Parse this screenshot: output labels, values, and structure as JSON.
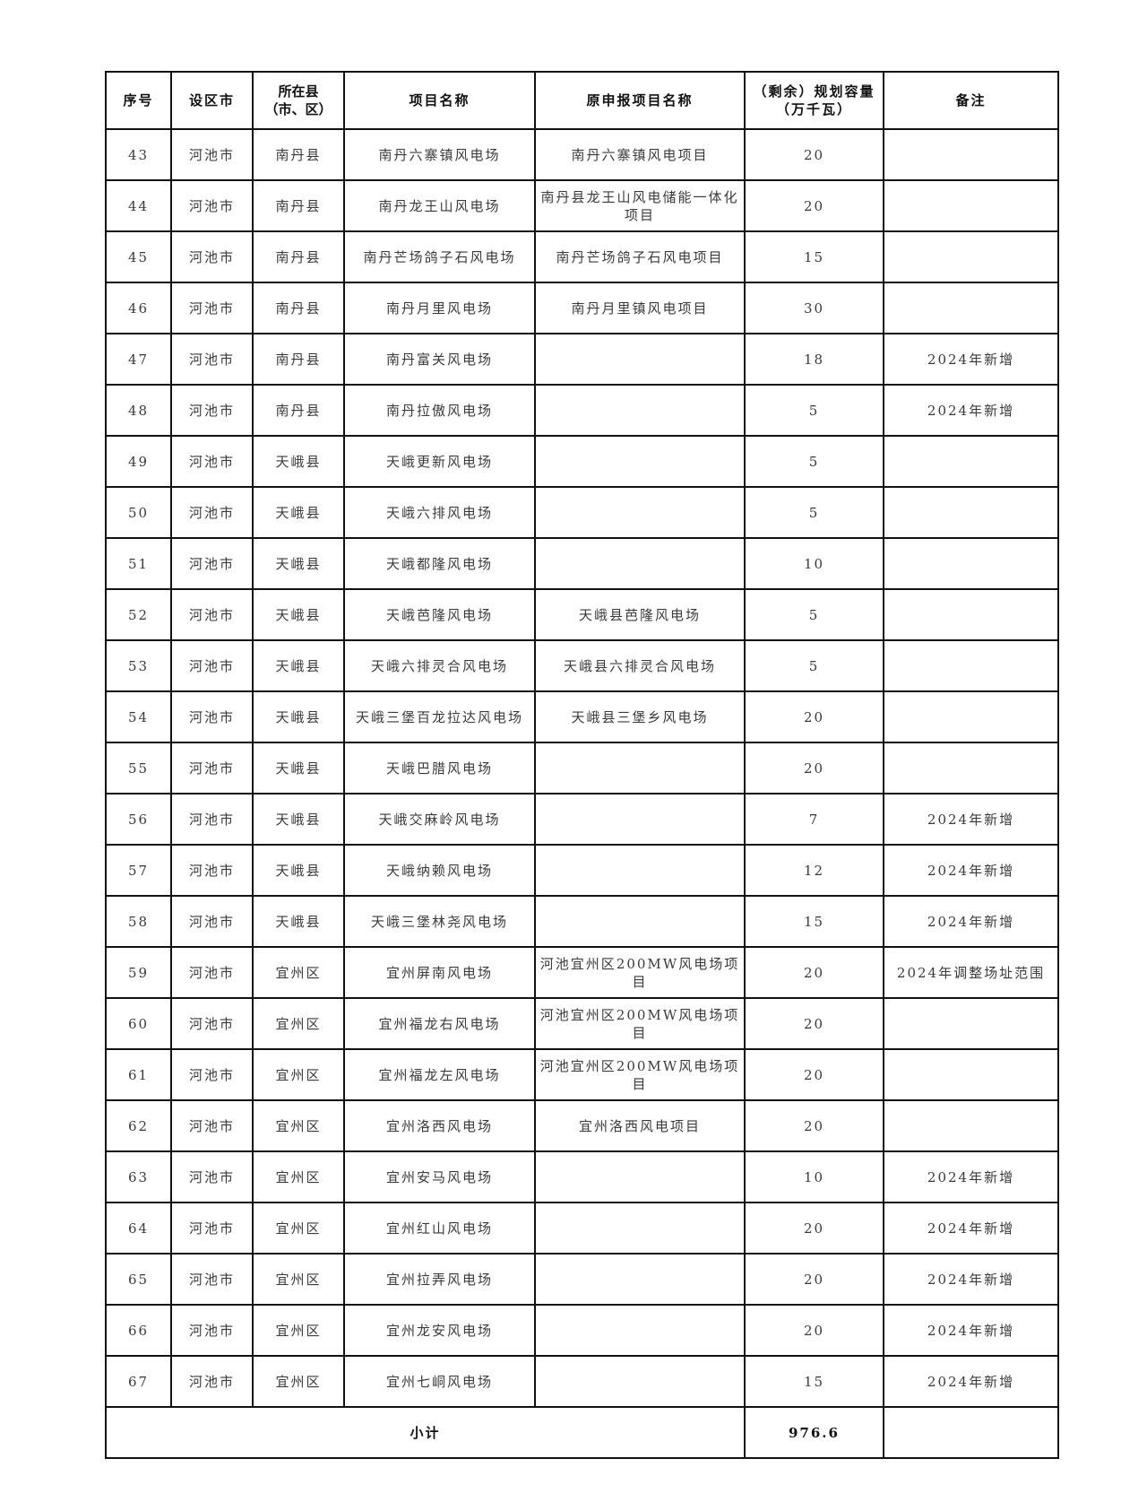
{
  "headers": [
    "序号",
    "设区市",
    "所在县（市、区）",
    "项目名称",
    "原申报项目名称",
    "（剩余）规划容量（万千瓦）",
    "备注"
  ],
  "header_lines": {
    "county": [
      "所在县",
      "（市、区）"
    ],
    "capacity": [
      "（剩余）规划容量",
      "（万千瓦）"
    ]
  },
  "rows": [
    [
      "43",
      "河池市",
      "南丹县",
      "南丹六寨镇风电场",
      "南丹六寨镇风电项目",
      "20",
      ""
    ],
    [
      "44",
      "河池市",
      "南丹县",
      "南丹龙王山风电场",
      "南丹县龙王山风电储能一体化项目",
      "20",
      ""
    ],
    [
      "45",
      "河池市",
      "南丹县",
      "南丹芒场鸽子石风电场",
      "南丹芒场鸽子石风电项目",
      "15",
      ""
    ],
    [
      "46",
      "河池市",
      "南丹县",
      "南丹月里风电场",
      "南丹月里镇风电项目",
      "30",
      ""
    ],
    [
      "47",
      "河池市",
      "南丹县",
      "南丹富关风电场",
      "",
      "18",
      "2024年新增"
    ],
    [
      "48",
      "河池市",
      "南丹县",
      "南丹拉傲风电场",
      "",
      "5",
      "2024年新增"
    ],
    [
      "49",
      "河池市",
      "天峨县",
      "天峨更新风电场",
      "",
      "5",
      ""
    ],
    [
      "50",
      "河池市",
      "天峨县",
      "天峨六排风电场",
      "",
      "5",
      ""
    ],
    [
      "51",
      "河池市",
      "天峨县",
      "天峨都隆风电场",
      "",
      "10",
      ""
    ],
    [
      "52",
      "河池市",
      "天峨县",
      "天峨芭隆风电场",
      "天峨县芭隆风电场",
      "5",
      ""
    ],
    [
      "53",
      "河池市",
      "天峨县",
      "天峨六排灵合风电场",
      "天峨县六排灵合风电场",
      "5",
      ""
    ],
    [
      "54",
      "河池市",
      "天峨县",
      "天峨三堡百龙拉达风电场",
      "天峨县三堡乡风电场",
      "20",
      ""
    ],
    [
      "55",
      "河池市",
      "天峨县",
      "天峨巴腊风电场",
      "",
      "20",
      ""
    ],
    [
      "56",
      "河池市",
      "天峨县",
      "天峨交麻岭风电场",
      "",
      "7",
      "2024年新增"
    ],
    [
      "57",
      "河池市",
      "天峨县",
      "天峨纳赖风电场",
      "",
      "12",
      "2024年新增"
    ],
    [
      "58",
      "河池市",
      "天峨县",
      "天峨三堡林尧风电场",
      "",
      "15",
      "2024年新增"
    ],
    [
      "59",
      "河池市",
      "宜州区",
      "宜州屏南风电场",
      "河池宜州区200MW风电场项目",
      "20",
      "2024年调整场址范围"
    ],
    [
      "60",
      "河池市",
      "宜州区",
      "宜州福龙右风电场",
      "河池宜州区200MW风电场项目",
      "20",
      ""
    ],
    [
      "61",
      "河池市",
      "宜州区",
      "宜州福龙左风电场",
      "河池宜州区200MW风电场项目",
      "20",
      ""
    ],
    [
      "62",
      "河池市",
      "宜州区",
      "宜州洛西风电场",
      "宜州洛西风电项目",
      "20",
      ""
    ],
    [
      "63",
      "河池市",
      "宜州区",
      "宜州安马风电场",
      "",
      "10",
      "2024年新增"
    ],
    [
      "64",
      "河池市",
      "宜州区",
      "宜州红山风电场",
      "",
      "20",
      "2024年新增"
    ],
    [
      "65",
      "河池市",
      "宜州区",
      "宜州拉弄风电场",
      "",
      "20",
      "2024年新增"
    ],
    [
      "66",
      "河池市",
      "宜州区",
      "宜州龙安风电场",
      "",
      "20",
      "2024年新增"
    ],
    [
      "67",
      "河池市",
      "宜州区",
      "宜州七峒风电场",
      "",
      "15",
      "2024年新增"
    ]
  ],
  "subtotal": {
    "label": "小计",
    "value": "976.6",
    "note": ""
  }
}
